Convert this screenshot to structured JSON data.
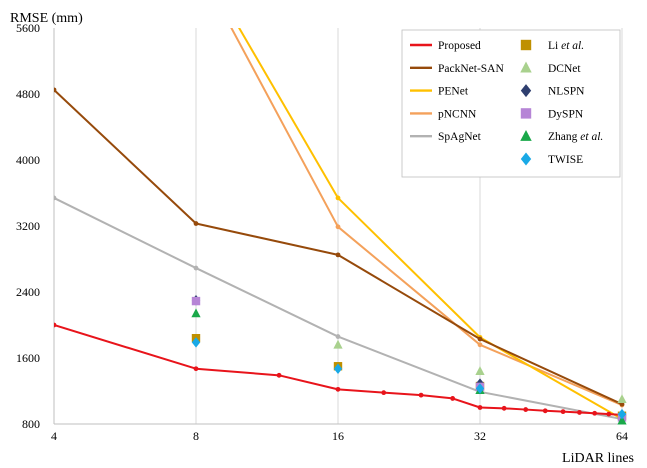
{
  "chart_data": {
    "type": "line",
    "ylabel": "RMSE (mm)",
    "xlabel": "LiDAR lines",
    "x_scale": "log2",
    "xlim": [
      4,
      64
    ],
    "ylim": [
      800,
      5600
    ],
    "xticks": [
      "4",
      "8",
      "16",
      "32",
      "64"
    ],
    "yticks": [
      "800",
      "1600",
      "2400",
      "3200",
      "4000",
      "4800",
      "5600"
    ],
    "grid": "vertical",
    "legend_position": "top-right",
    "legend_columns": 2,
    "series": [
      {
        "name": "Proposed",
        "kind": "line",
        "color": "#e8141b",
        "markers": true,
        "points": [
          [
            4,
            2000
          ],
          [
            8,
            1470
          ],
          [
            12,
            1390
          ],
          [
            16,
            1220
          ],
          [
            20,
            1180
          ],
          [
            24,
            1150
          ],
          [
            28,
            1110
          ],
          [
            32,
            1000
          ],
          [
            36,
            990
          ],
          [
            40,
            975
          ],
          [
            44,
            960
          ],
          [
            48,
            950
          ],
          [
            52,
            940
          ],
          [
            56,
            930
          ],
          [
            60,
            920
          ],
          [
            64,
            910
          ]
        ]
      },
      {
        "name": "PackNet-SAN",
        "kind": "line",
        "color": "#964a0b",
        "markers": true,
        "points": [
          [
            4,
            4850
          ],
          [
            8,
            3230
          ],
          [
            16,
            2850
          ],
          [
            32,
            1830
          ],
          [
            64,
            1040
          ]
        ]
      },
      {
        "name": "PENet",
        "kind": "line",
        "color": "#ffc000",
        "markers": true,
        "points": [
          [
            8,
            6500
          ],
          [
            16,
            3540
          ],
          [
            32,
            1850
          ],
          [
            64,
            860
          ]
        ]
      },
      {
        "name": "pNCNN",
        "kind": "line",
        "color": "#f4a15b",
        "markers": true,
        "points": [
          [
            8,
            6400
          ],
          [
            16,
            3190
          ],
          [
            32,
            1760
          ],
          [
            64,
            1030
          ]
        ]
      },
      {
        "name": "SpAgNet",
        "kind": "line",
        "color": "#b2b2b2",
        "markers": true,
        "points": [
          [
            4,
            3540
          ],
          [
            8,
            2690
          ],
          [
            16,
            1860
          ],
          [
            32,
            1190
          ],
          [
            64,
            860
          ]
        ]
      },
      {
        "name_parts": [
          "Li ",
          "et al."
        ],
        "kind": "marker",
        "marker": "square",
        "color": "#bf9000",
        "points": [
          [
            8,
            1840
          ],
          [
            16,
            1500
          ],
          [
            32,
            1260
          ],
          [
            64,
            900
          ]
        ]
      },
      {
        "name": "DCNet",
        "kind": "marker",
        "marker": "triangle",
        "color": "#a9d18e",
        "points": [
          [
            16,
            1760
          ],
          [
            32,
            1440
          ],
          [
            64,
            1100
          ]
        ]
      },
      {
        "name": "NLSPN",
        "kind": "marker",
        "marker": "diamond",
        "color": "#2f3f6f",
        "points": [
          [
            8,
            2300
          ],
          [
            32,
            1290
          ],
          [
            64,
            900
          ]
        ]
      },
      {
        "name": "DySPN",
        "kind": "marker",
        "marker": "square",
        "color": "#b685d6",
        "points": [
          [
            8,
            2290
          ],
          [
            32,
            1250
          ],
          [
            64,
            880
          ]
        ]
      },
      {
        "name_parts": [
          "Zhang ",
          "et al."
        ],
        "kind": "marker",
        "marker": "triangle",
        "color": "#1aa84a",
        "points": [
          [
            8,
            2140
          ],
          [
            32,
            1210
          ],
          [
            64,
            840
          ]
        ]
      },
      {
        "name": "TWISE",
        "kind": "marker",
        "marker": "diamond",
        "color": "#19a9e6",
        "points": [
          [
            8,
            1790
          ],
          [
            16,
            1470
          ],
          [
            32,
            1230
          ],
          [
            64,
            920
          ]
        ]
      }
    ]
  }
}
